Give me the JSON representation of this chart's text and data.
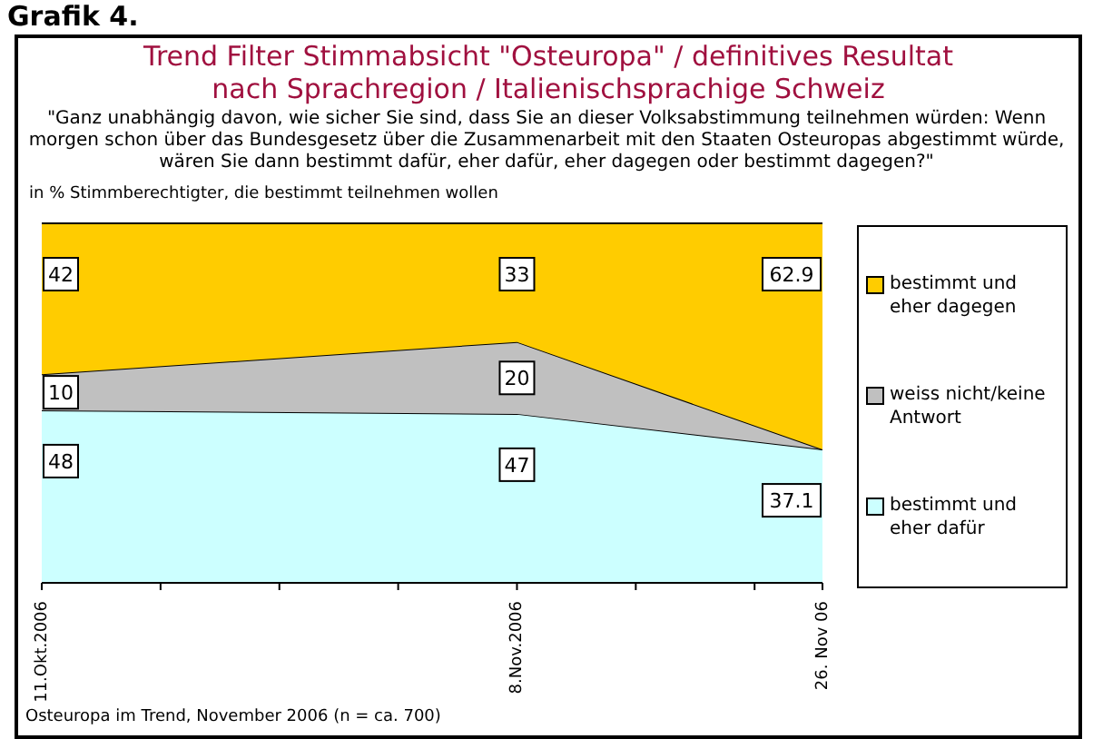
{
  "chart_data": {
    "type": "area",
    "stacked": true,
    "title": "Trend Filter Stimmabsicht \"Osteuropa\" / definitives Resultat\nnach Sprachregion / Italienischsprachige Schweiz",
    "subtitle": "\"Ganz unabhängig davon, wie sicher Sie sind, dass Sie an dieser Volksabstimmung teilnehmen würden: Wenn morgen schon über das Bundesgesetz über die Zusammenarbeit mit den Staaten Osteuropas abgestimmt würde, wären Sie dann bestimmt dafür, eher dafür, eher dagegen oder bestimmt dagegen?\"",
    "ylabel": "in % Stimmberechtigter, die bestimmt teilnehmen wollen",
    "annotations": [
      "Grafik 4.",
      "Osteuropa im Trend, November 2006 (n = ca. 700)"
    ],
    "x": [
      "2006-10-11",
      "2006-11-08",
      "2006-11-26"
    ],
    "xlim": [
      "2006-10-11",
      "2006-11-26"
    ],
    "xticks": [
      {
        "value": "2006-10-11",
        "label": "11.Okt.2006"
      },
      {
        "value": "2006-10-18",
        "label": null
      },
      {
        "value": "2006-10-25",
        "label": null
      },
      {
        "value": "2006-11-01",
        "label": null
      },
      {
        "value": "2006-11-08",
        "label": "8.Nov.2006"
      },
      {
        "value": "2006-11-15",
        "label": null
      },
      {
        "value": "2006-11-22",
        "label": null
      },
      {
        "value": "2006-11-26",
        "label": "26. Nov 06"
      }
    ],
    "series": [
      {
        "name": "bestimmt und eher dafür",
        "color": "#ccffff",
        "values": [
          48,
          47,
          37.1
        ],
        "value_labels": [
          "48",
          "47",
          "37.1"
        ]
      },
      {
        "name": "weiss nicht/keine Antwort",
        "color": "#c0c0c0",
        "values": [
          10,
          20,
          0
        ],
        "value_labels": [
          "10",
          "20",
          null
        ]
      },
      {
        "name": "bestimmt und eher dagegen",
        "color": "#ffcc00",
        "values": [
          42,
          33,
          62.9
        ],
        "value_labels": [
          "42",
          "33",
          "62.9"
        ]
      }
    ],
    "legend": "right",
    "grid": false
  }
}
